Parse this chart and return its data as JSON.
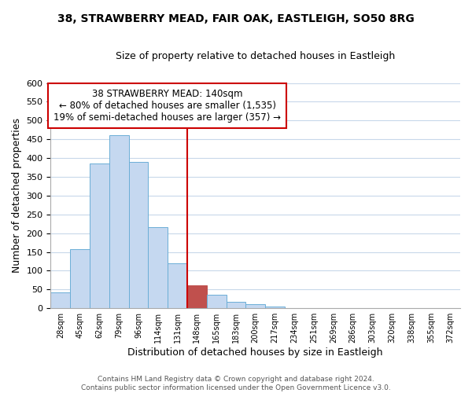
{
  "title_line1": "38, STRAWBERRY MEAD, FAIR OAK, EASTLEIGH, SO50 8RG",
  "title_line2": "Size of property relative to detached houses in Eastleigh",
  "xlabel": "Distribution of detached houses by size in Eastleigh",
  "ylabel": "Number of detached properties",
  "bin_labels": [
    "28sqm",
    "45sqm",
    "62sqm",
    "79sqm",
    "96sqm",
    "114sqm",
    "131sqm",
    "148sqm",
    "165sqm",
    "183sqm",
    "200sqm",
    "217sqm",
    "234sqm",
    "251sqm",
    "269sqm",
    "286sqm",
    "303sqm",
    "320sqm",
    "338sqm",
    "355sqm",
    "372sqm"
  ],
  "bar_heights": [
    42,
    158,
    385,
    460,
    390,
    217,
    120,
    62,
    35,
    18,
    10,
    5,
    0,
    0,
    0,
    0,
    0,
    0,
    0,
    0,
    0
  ],
  "bar_color": "#c5d8f0",
  "bar_edge_color": "#6baed6",
  "highlight_bar_index": 7,
  "highlight_bar_color": "#c0504d",
  "vline_color": "#cc0000",
  "annotation_box_text": "38 STRAWBERRY MEAD: 140sqm\n← 80% of detached houses are smaller (1,535)\n19% of semi-detached houses are larger (357) →",
  "ylim": [
    0,
    600
  ],
  "yticks": [
    0,
    50,
    100,
    150,
    200,
    250,
    300,
    350,
    400,
    450,
    500,
    550,
    600
  ],
  "footer_line1": "Contains HM Land Registry data © Crown copyright and database right 2024.",
  "footer_line2": "Contains public sector information licensed under the Open Government Licence v3.0.",
  "background_color": "#ffffff",
  "grid_color": "#c8d8ea"
}
